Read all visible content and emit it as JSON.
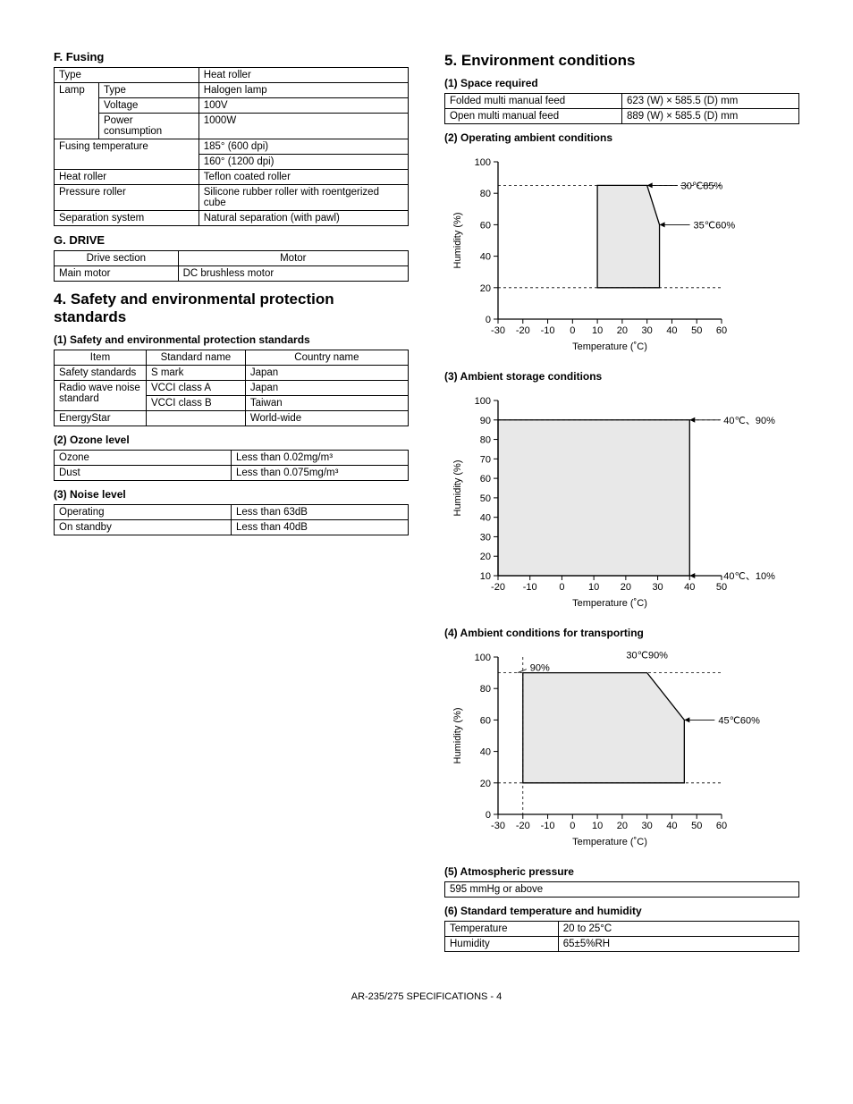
{
  "left": {
    "fusing": {
      "title": "F.  Fusing",
      "rows": {
        "type": "Type",
        "type_val": "Heat roller",
        "lamp": "Lamp",
        "lamp_type": "Type",
        "lamp_type_val": "Halogen lamp",
        "voltage": "Voltage",
        "voltage_val": "100V",
        "power": "Power consumption",
        "power_val": "1000W",
        "ftemp": "Fusing temperature",
        "ftemp_val1": "185° (600 dpi)",
        "ftemp_val2": "160° (1200 dpi)",
        "hroller": "Heat roller",
        "hroller_val": "Teflon coated roller",
        "proller": "Pressure roller",
        "proller_val": "Silicone rubber roller with roentgerized cube",
        "sep": "Separation system",
        "sep_val": "Natural separation (with pawl)"
      }
    },
    "drive": {
      "title": "G.  DRIVE",
      "h1": "Drive section",
      "h2": "Motor",
      "r1a": "Main motor",
      "r1b": "DC brushless motor"
    },
    "safety": {
      "title": "4.  Safety and environmental protection standards",
      "sub1": "(1)  Safety and environmental protection standards",
      "h_item": "Item",
      "h_std": "Standard name",
      "h_country": "Country name",
      "r1a": "Safety standards",
      "r1b": "S mark",
      "r1c": "Japan",
      "r2a": "Radio wave noise standard",
      "r2b": "VCCI class A",
      "r2c": "Japan",
      "r2b2": "VCCI class B",
      "r2c2": "Taiwan",
      "r3a": "EnergyStar",
      "r3b": "",
      "r3c": "World-wide",
      "sub2": "(2)  Ozone level",
      "oz_a": "Ozone",
      "oz_b": "Less than 0.02mg/m³",
      "du_a": "Dust",
      "du_b": "Less than 0.075mg/m³",
      "sub3": "(3)  Noise level",
      "op_a": "Operating",
      "op_b": "Less than 63dB",
      "st_a": "On standby",
      "st_b": "Less than 40dB"
    }
  },
  "right": {
    "env": {
      "title": "5.  Environment conditions",
      "sub1": "(1)  Space required",
      "sp_r1a": "Folded multi manual feed",
      "sp_r1b": "623 (W) × 585.5 (D) mm",
      "sp_r2a": "Open multi manual feed",
      "sp_r2b": "889 (W) × 585.5 (D) mm",
      "sub2": "(2)  Operating ambient conditions",
      "sub3": "(3)  Ambient storage conditions",
      "sub4": "(4)  Ambient conditions for transporting",
      "sub5": "(5)  Atmospheric pressure",
      "atm": "595 mmHg or above",
      "sub6": "(6)  Standard temperature and humidity",
      "th_r1a": "Temperature",
      "th_r1b": "20 to 25°C",
      "th_r2a": "Humidity",
      "th_r2b": "65±5%RH"
    }
  },
  "charts": {
    "xlabel": "Temperature (˚C)",
    "ylabel": "Humidity (%)",
    "chart2": {
      "xticks": [
        -30,
        -20,
        -10,
        0,
        10,
        20,
        30,
        40,
        50,
        60
      ],
      "yticks": [
        0,
        20,
        40,
        60,
        80,
        100
      ],
      "region": [
        [
          10,
          20
        ],
        [
          10,
          85
        ],
        [
          30,
          85
        ],
        [
          35,
          60
        ],
        [
          35,
          20
        ]
      ],
      "ann1": "30℃85%",
      "ann1_xy": [
        30,
        85
      ],
      "ann2": "35℃60%",
      "ann2_xy": [
        35,
        60
      ],
      "dash_y": [
        20,
        85
      ]
    },
    "chart3": {
      "xticks": [
        -20,
        -10,
        0,
        10,
        20,
        30,
        40,
        50
      ],
      "yticks": [
        10,
        20,
        30,
        40,
        50,
        60,
        70,
        80,
        90,
        100
      ],
      "region": [
        [
          -20,
          10
        ],
        [
          -20,
          90
        ],
        [
          40,
          90
        ],
        [
          40,
          10
        ]
      ],
      "ann1": "40℃、90%",
      "ann1_xy": [
        40,
        90
      ],
      "ann2": "40℃、10%",
      "ann2_xy": [
        40,
        10
      ],
      "dash_y": [
        10,
        90
      ]
    },
    "chart4": {
      "xticks": [
        -30,
        -20,
        -10,
        0,
        10,
        20,
        30,
        40,
        50,
        60
      ],
      "yticks": [
        0,
        20,
        40,
        60,
        80,
        100
      ],
      "region": [
        [
          -20,
          20
        ],
        [
          -20,
          90
        ],
        [
          30,
          90
        ],
        [
          45,
          60
        ],
        [
          45,
          20
        ]
      ],
      "ann1": "30℃90%",
      "ann1_xy": [
        30,
        90
      ],
      "ann1_pos": "top",
      "ann2": "45℃60%",
      "ann2_xy": [
        45,
        60
      ],
      "ann0": "90%",
      "dash_y": [
        20,
        90
      ],
      "dash_x": -20
    },
    "colors": {
      "axis": "#000000",
      "fill": "#e8e8e8",
      "dash": "#000000",
      "text": "#000000"
    }
  },
  "footer": "AR-235/275 SPECIFICATIONS - 4"
}
